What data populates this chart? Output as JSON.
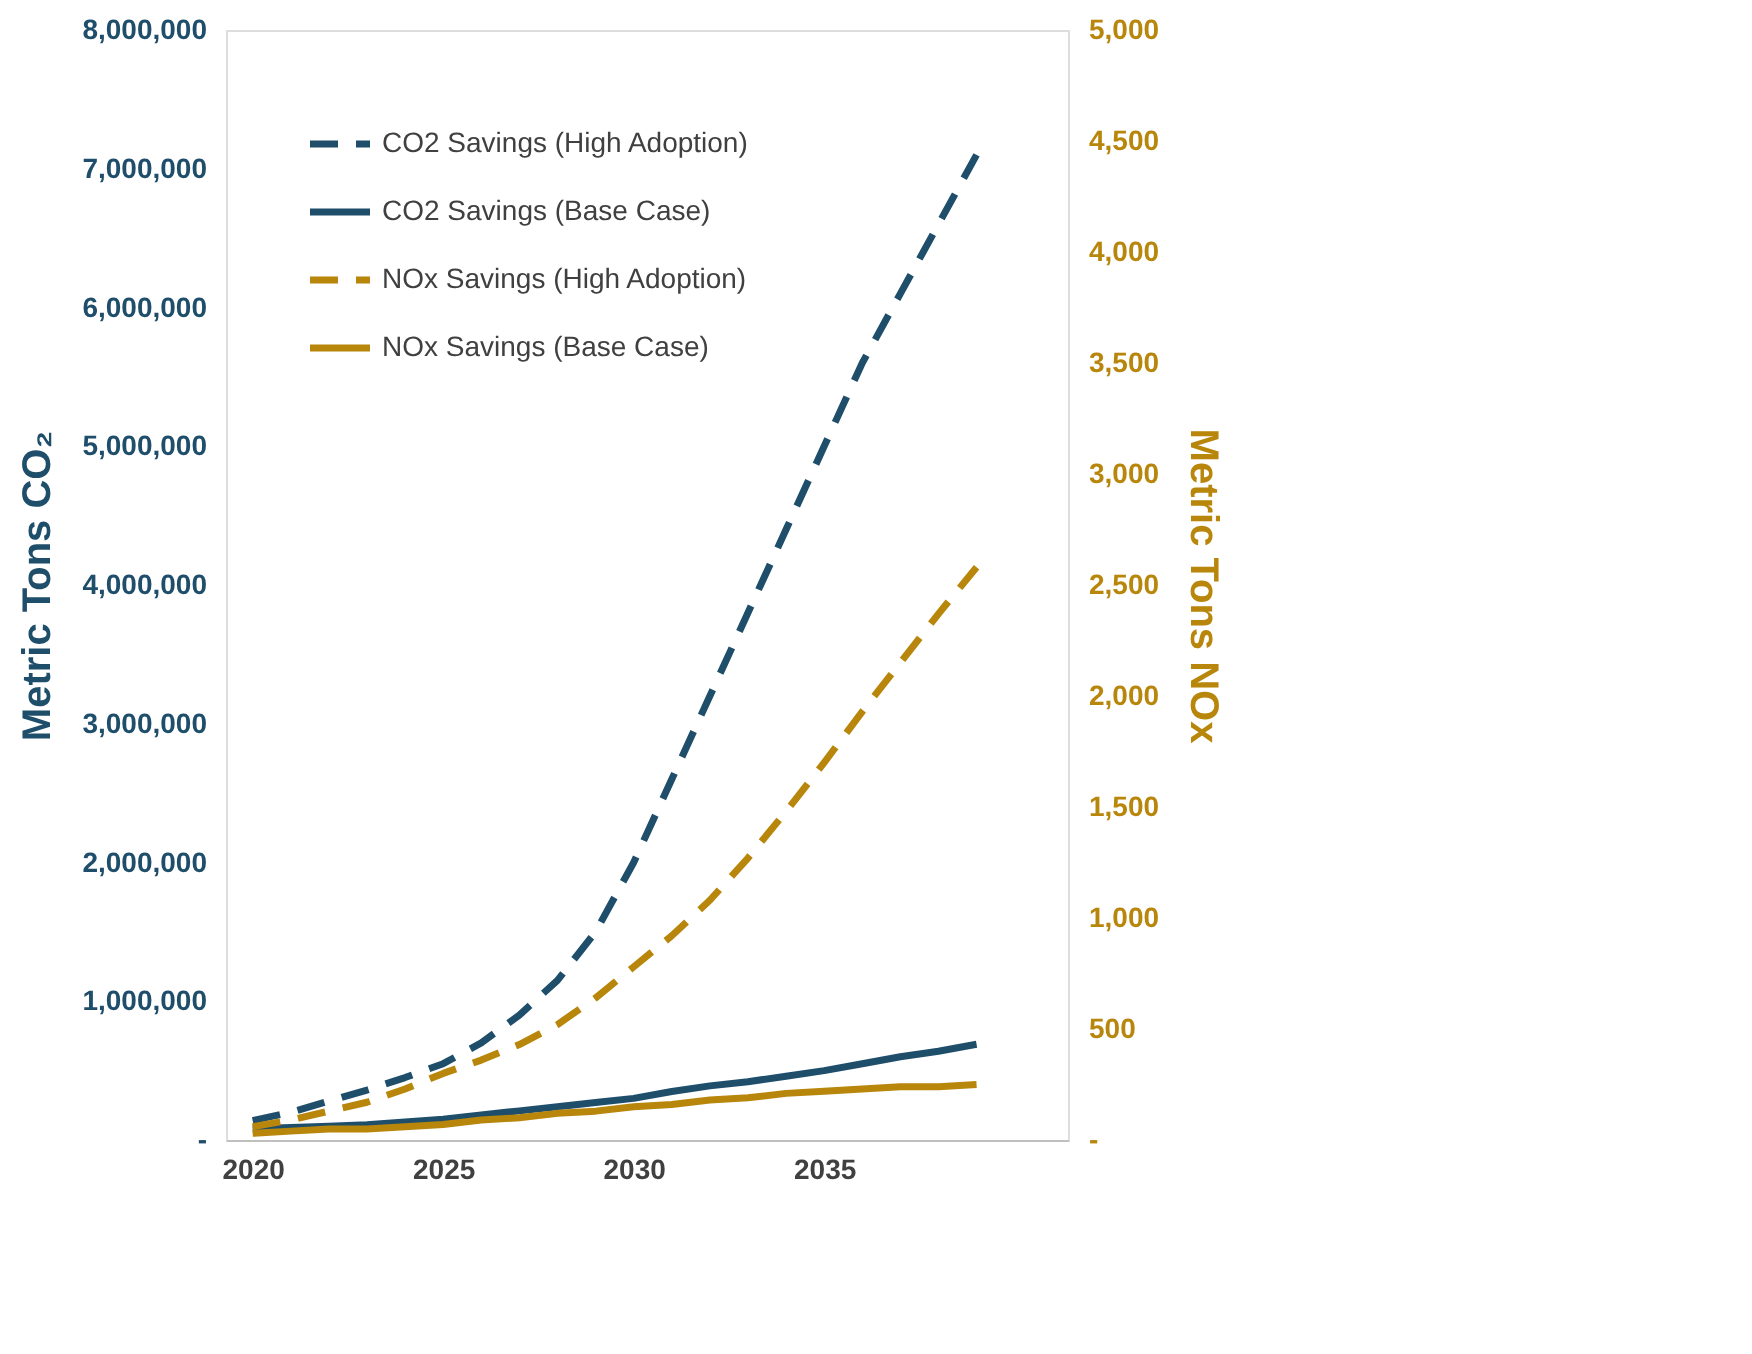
{
  "chart_data": {
    "type": "line",
    "ylabel": "Metric Tons CO₂",
    "y2label": "Metric Tons NOx",
    "x": [
      2020,
      2021,
      2022,
      2023,
      2024,
      2025,
      2026,
      2027,
      2028,
      2029,
      2030,
      2031,
      2032,
      2033,
      2034,
      2035,
      2036,
      2037,
      2038,
      2039
    ],
    "xlim": [
      2019.3,
      2041.4
    ],
    "xticks": [
      2020,
      2025,
      2030,
      2035
    ],
    "ylim": [
      0,
      8000000
    ],
    "yticks": [
      {
        "value": 0,
        "label": "-"
      },
      {
        "value": 1000000,
        "label": "1,000,000"
      },
      {
        "value": 2000000,
        "label": "2,000,000"
      },
      {
        "value": 3000000,
        "label": "3,000,000"
      },
      {
        "value": 4000000,
        "label": "4,000,000"
      },
      {
        "value": 5000000,
        "label": "5,000,000"
      },
      {
        "value": 6000000,
        "label": "6,000,000"
      },
      {
        "value": 7000000,
        "label": "7,000,000"
      },
      {
        "value": 8000000,
        "label": "8,000,000"
      }
    ],
    "y2lim": [
      0,
      5000
    ],
    "y2ticks": [
      {
        "value": 0,
        "label": "-"
      },
      500,
      {
        "value": 1000,
        "label": "1,000"
      },
      {
        "value": 1500,
        "label": "1,500"
      },
      {
        "value": 2000,
        "label": "2,000"
      },
      {
        "value": 2500,
        "label": "2,500"
      },
      {
        "value": 3000,
        "label": "3,000"
      },
      {
        "value": 3500,
        "label": "3,500"
      },
      {
        "value": 4000,
        "label": "4,000"
      },
      {
        "value": 4500,
        "label": "4,500"
      },
      {
        "value": 5000,
        "label": "5,000"
      }
    ],
    "grid": false,
    "legend": "top left",
    "marker": "none",
    "series": [
      {
        "name": "CO2 Savings (High Adoption)",
        "color": "#1f4e6b",
        "line_style": "dashed",
        "values": [
          140000,
          200000,
          280000,
          360000,
          450000,
          550000,
          700000,
          900000,
          1150000,
          1500000,
          2000000,
          2600000,
          3200000,
          3800000,
          4400000,
          5000000,
          5600000,
          6100000,
          6600000,
          7100000
        ]
      },
      {
        "name": "CO2 Savings (Base Case)",
        "color": "#1f4e6b",
        "line_style": "solid",
        "values": [
          80000,
          90000,
          100000,
          110000,
          130000,
          150000,
          180000,
          210000,
          240000,
          270000,
          300000,
          350000,
          390000,
          420000,
          460000,
          500000,
          550000,
          600000,
          640000,
          690000
        ]
      },
      {
        "name": "NOx Savings (High Adoption)",
        "color": "#b8860b",
        "line_style": "dashed",
        "axis": "y2",
        "values": [
          60,
          90,
          130,
          170,
          230,
          300,
          360,
          430,
          520,
          640,
          780,
          920,
          1080,
          1270,
          1480,
          1700,
          1930,
          2150,
          2370,
          2580
        ]
      },
      {
        "name": "NOx Savings (Base Case)",
        "color": "#b8860b",
        "line_style": "solid",
        "axis": "y2",
        "values": [
          30,
          40,
          50,
          50,
          60,
          70,
          90,
          100,
          120,
          130,
          150,
          160,
          180,
          190,
          210,
          220,
          230,
          240,
          240,
          250
        ]
      }
    ]
  }
}
